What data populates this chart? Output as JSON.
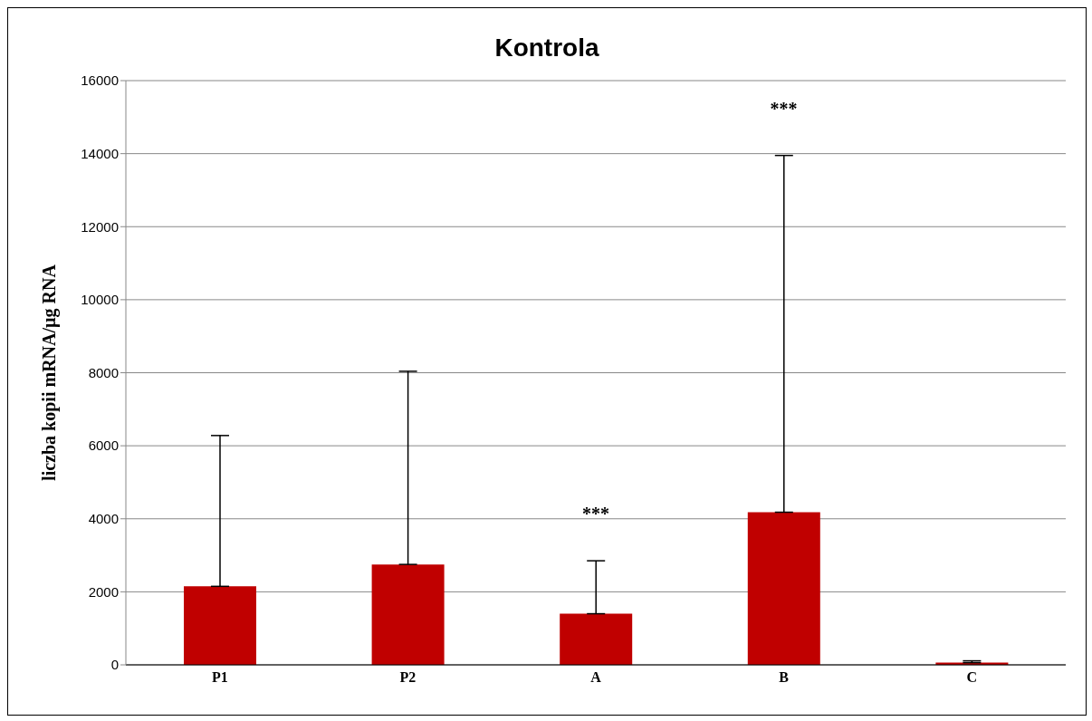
{
  "chart_data": {
    "type": "bar",
    "title": "Kontrola",
    "ylabel": "liczba kopii mRNA/µg RNA",
    "categories": [
      "P1",
      "P2",
      "A",
      "B",
      "C"
    ],
    "values": [
      2150,
      2750,
      1400,
      4180,
      60
    ],
    "errors": [
      [
        2150,
        6280
      ],
      [
        2750,
        8040
      ],
      [
        1400,
        2850
      ],
      [
        4180,
        13950
      ],
      [
        60,
        110
      ]
    ],
    "color": "#c00000",
    "ylim": [
      0,
      16000
    ],
    "yticks": [
      0,
      2000,
      4000,
      6000,
      8000,
      10000,
      12000,
      14000,
      16000
    ],
    "grid": "y",
    "annotations": [
      {
        "text": "***",
        "x": "A",
        "y": 2850
      },
      {
        "text": "***",
        "x": "B",
        "y": 13950
      }
    ]
  }
}
